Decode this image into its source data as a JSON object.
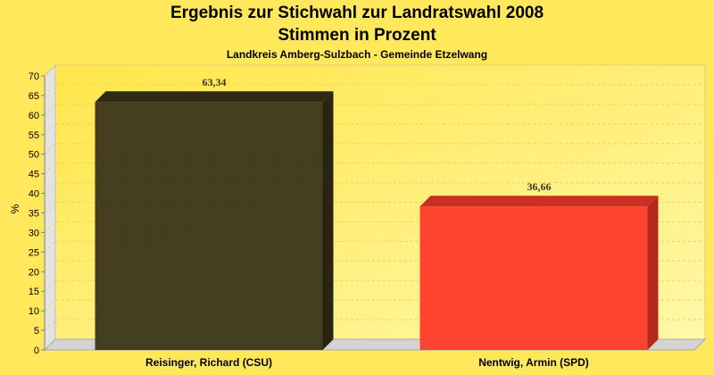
{
  "chart_data": {
    "type": "bar",
    "title": "Ergebnis zur Stichwahl zur Landratswahl 2008",
    "title_line2": "Stimmen in Prozent",
    "subtitle": "Landkreis Amberg-Sulzbach - Gemeinde Etzelwang",
    "ylabel": "%",
    "xlabel": "",
    "ylim": [
      0,
      70
    ],
    "yticks": [
      0,
      5,
      10,
      15,
      20,
      25,
      30,
      35,
      40,
      45,
      50,
      55,
      60,
      65,
      70
    ],
    "categories": [
      "Reisinger, Richard (CSU)",
      "Nentwig, Armin (SPD)"
    ],
    "values": [
      63.34,
      36.66
    ],
    "value_labels": [
      "63,34",
      "36,66"
    ],
    "bar_colors": [
      "#3a3519",
      "#ff3b2a"
    ],
    "grid": true,
    "legend": "none",
    "style": "3d"
  }
}
